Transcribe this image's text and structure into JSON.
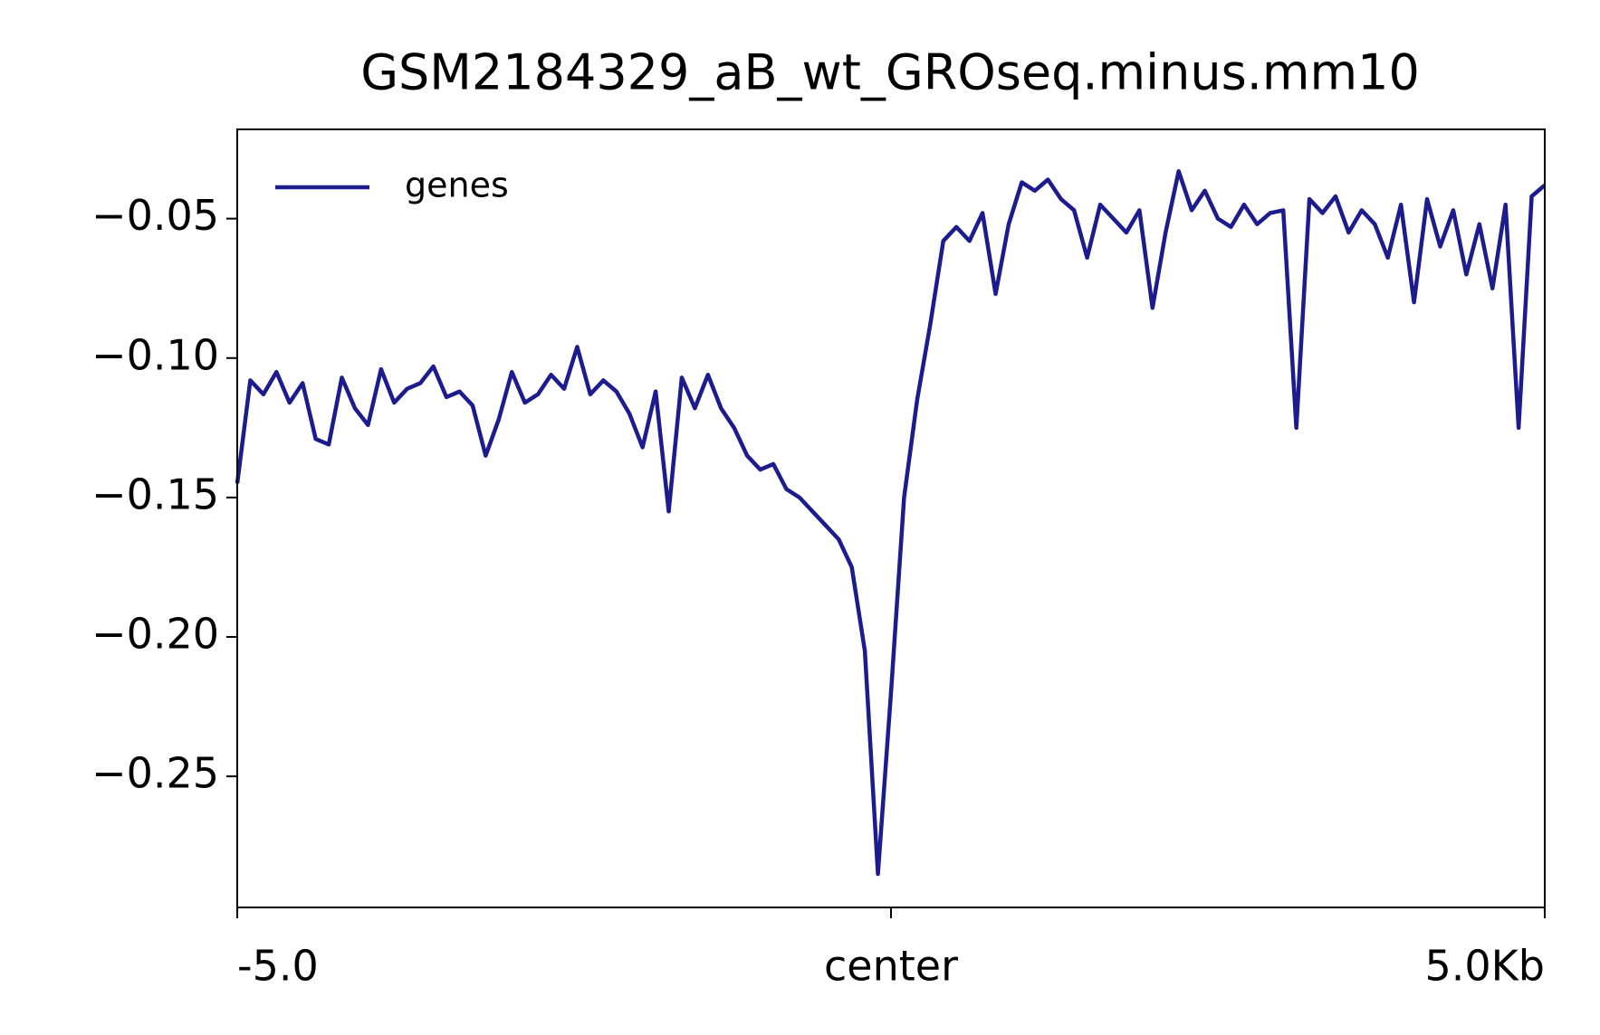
{
  "chart_data": {
    "type": "line",
    "title": "GSM2184329_aB_wt_GROseq.minus.mm10",
    "x": [
      -5.0,
      -4.9,
      -4.8,
      -4.7,
      -4.6,
      -4.5,
      -4.4,
      -4.3,
      -4.2,
      -4.1,
      -4.0,
      -3.9,
      -3.8,
      -3.7,
      -3.6,
      -3.5,
      -3.4,
      -3.3,
      -3.2,
      -3.1,
      -3.0,
      -2.9,
      -2.8,
      -2.7,
      -2.6,
      -2.5,
      -2.4,
      -2.3,
      -2.2,
      -2.1,
      -2.0,
      -1.9,
      -1.8,
      -1.7,
      -1.6,
      -1.5,
      -1.4,
      -1.3,
      -1.2,
      -1.1,
      -1.0,
      -0.9,
      -0.8,
      -0.7,
      -0.6,
      -0.5,
      -0.4,
      -0.3,
      -0.2,
      -0.1,
      0.0,
      0.1,
      0.2,
      0.3,
      0.4,
      0.5,
      0.6,
      0.7,
      0.8,
      0.9,
      1.0,
      1.1,
      1.2,
      1.3,
      1.4,
      1.5,
      1.6,
      1.7,
      1.8,
      1.9,
      2.0,
      2.1,
      2.2,
      2.3,
      2.4,
      2.5,
      2.6,
      2.7,
      2.8,
      2.9,
      3.0,
      3.1,
      3.2,
      3.3,
      3.4,
      3.5,
      3.6,
      3.7,
      3.8,
      3.9,
      4.0,
      4.1,
      4.2,
      4.3,
      4.4,
      4.5,
      4.6,
      4.7,
      4.8,
      4.9,
      5.0
    ],
    "series": [
      {
        "name": "genes",
        "color": "#1c1c8e",
        "values": [
          -0.145,
          -0.108,
          -0.113,
          -0.105,
          -0.116,
          -0.109,
          -0.129,
          -0.131,
          -0.107,
          -0.118,
          -0.124,
          -0.104,
          -0.116,
          -0.111,
          -0.109,
          -0.103,
          -0.114,
          -0.112,
          -0.117,
          -0.135,
          -0.122,
          -0.105,
          -0.116,
          -0.113,
          -0.106,
          -0.111,
          -0.096,
          -0.113,
          -0.108,
          -0.112,
          -0.12,
          -0.132,
          -0.112,
          -0.155,
          -0.107,
          -0.118,
          -0.106,
          -0.118,
          -0.125,
          -0.135,
          -0.14,
          -0.138,
          -0.147,
          -0.15,
          -0.155,
          -0.16,
          -0.165,
          -0.175,
          -0.205,
          -0.285,
          -0.22,
          -0.15,
          -0.115,
          -0.088,
          -0.058,
          -0.053,
          -0.058,
          -0.048,
          -0.077,
          -0.052,
          -0.037,
          -0.04,
          -0.036,
          -0.043,
          -0.047,
          -0.064,
          -0.045,
          -0.05,
          -0.055,
          -0.047,
          -0.082,
          -0.055,
          -0.033,
          -0.047,
          -0.04,
          -0.05,
          -0.053,
          -0.045,
          -0.052,
          -0.048,
          -0.047,
          -0.125,
          -0.043,
          -0.048,
          -0.042,
          -0.055,
          -0.047,
          -0.052,
          -0.064,
          -0.045,
          -0.08,
          -0.043,
          -0.06,
          -0.047,
          -0.07,
          -0.052,
          -0.075,
          -0.045,
          -0.125,
          -0.042,
          -0.038
        ]
      }
    ],
    "xlim": [
      -5,
      5
    ],
    "xticks": [
      {
        "value": -5,
        "label": "-5.0"
      },
      {
        "value": 0,
        "label": "center"
      },
      {
        "value": 5,
        "label": "5.0Kb"
      }
    ],
    "ylim": [
      -0.297,
      -0.018
    ],
    "yticks": [
      {
        "value": -0.05,
        "label": "−0.05"
      },
      {
        "value": -0.1,
        "label": "−0.10"
      },
      {
        "value": -0.15,
        "label": "−0.15"
      },
      {
        "value": -0.2,
        "label": "−0.20"
      },
      {
        "value": -0.25,
        "label": "−0.25"
      }
    ],
    "legend": "upper left",
    "grid": false
  }
}
